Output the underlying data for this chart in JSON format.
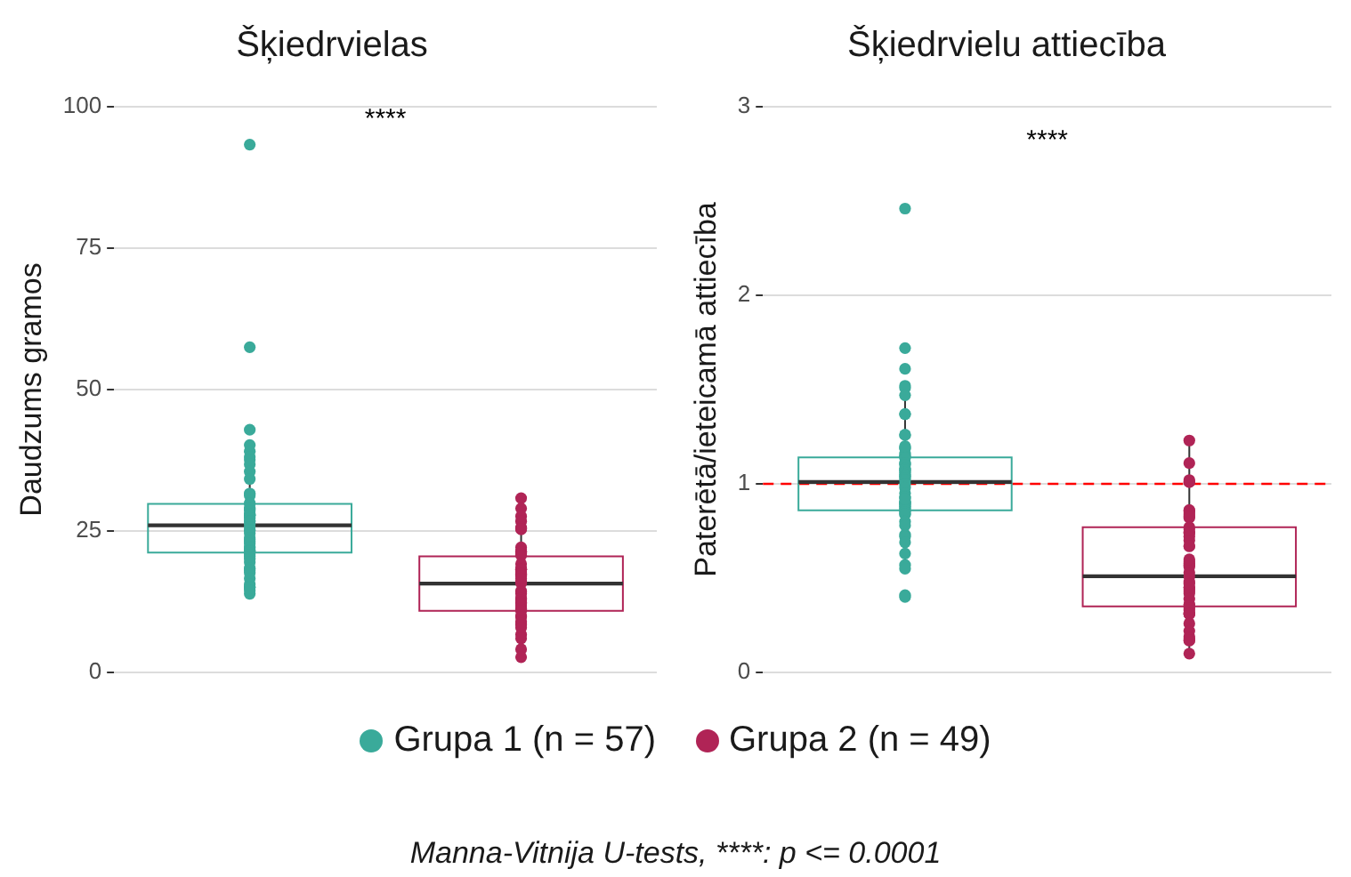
{
  "chart_data": [
    {
      "type": "box",
      "title": "Šķiedrvielas",
      "ylabel": "Daudzums gramos",
      "categories": [
        null,
        null
      ],
      "ylim": [
        0,
        100
      ],
      "yticks": [
        0,
        25,
        50,
        75,
        100
      ],
      "grid": "y",
      "tick_labels": "y",
      "legend": "bottom",
      "marker": "circle",
      "series": [
        {
          "name": "Grupa 1 (n = 57)",
          "color": "#3aaa9a",
          "boxes": [
            {
              "low": 14,
              "q1": 21.2,
              "median": 26,
              "q3": 29.8,
              "high": 40,
              "outliers": [
                93.3,
                57.5,
                42.9,
                40.2,
                39.1,
                38.1,
                37.6,
                36.8,
                35.5,
                34.2,
                31.6,
                31.6,
                31.3,
                29.9,
                29.9,
                29.1,
                28.9,
                28.6,
                28,
                27.8,
                27.8,
                27.8,
                27.6,
                27.3,
                26.8,
                26.7,
                26.2,
                25.7,
                25.2,
                25.1,
                24.6,
                23.8,
                23.5,
                23.1,
                22.8,
                22.2,
                22,
                21.6,
                21.5,
                21.4,
                21.4,
                21.1,
                20.8,
                20.5,
                20.1,
                19.5,
                18.4,
                18.4,
                18.1,
                17.6,
                16.6,
                15.6,
                15.1,
                15.1,
                15,
                13.9,
                14.5
              ]
            },
            null
          ]
        },
        {
          "name": "Grupa 2 (n = 49)",
          "color": "#b02456",
          "boxes": [
            null,
            {
              "low": 2.7,
              "q1": 10.9,
              "median": 15.7,
              "q3": 20.5,
              "high": 30.8,
              "outliers": [
                30.8,
                29,
                27.6,
                26.7,
                25.6,
                25.4,
                25.3,
                22.1,
                21.4,
                21.3,
                21.3,
                21.3,
                21,
                20.7,
                19.2,
                18.4,
                18.2,
                18.2,
                18.2,
                17.6,
                17.4,
                17.4,
                17.1,
                16,
                15.9,
                15.8,
                14.4,
                14.2,
                13.9,
                13.1,
                13.1,
                12.8,
                12.4,
                12.2,
                11.8,
                11.3,
                11.1,
                10.9,
                10,
                9.8,
                9,
                8.7,
                8.4,
                7.9,
                6.7,
                6,
                4.1,
                2.7,
                16.6
              ]
            }
          ]
        }
      ],
      "annotations": [
        "****",
        "Manna-Vitnija U-tests, ****: p <= 0.0001"
      ]
    },
    {
      "type": "box",
      "title": "Šķiedrvielu attiecība",
      "ylabel": "Paterētā/ieteicamā attiecība",
      "categories": [
        null,
        null
      ],
      "ylim": [
        0,
        3
      ],
      "yticks": [
        0,
        1,
        2,
        3
      ],
      "grid": "y",
      "tick_labels": "y",
      "marker": "circle",
      "series": [
        {
          "color": "#3aaa9a",
          "boxes": [
            {
              "low": 0.57,
              "q1": 0.86,
              "median": 1.01,
              "q3": 1.14,
              "high": 1.51,
              "outliers": [
                2.46,
                1.72,
                1.61,
                1.52,
                1.51,
                1.47,
                1.37,
                1.37,
                1.26,
                1.26,
                1.19,
                1.19,
                1.16,
                1.15,
                1.14,
                1.14,
                1.11,
                1.11,
                1.1,
                1.08,
                1.08,
                1.07,
                1.06,
                1.05,
                1.04,
                1.04,
                1.03,
                1.02,
                1,
                0.98,
                0.95,
                0.93,
                0.93,
                0.9,
                0.9,
                0.9,
                0.89,
                0.88,
                0.88,
                0.87,
                0.86,
                0.86,
                0.85,
                0.84,
                0.84,
                0.8,
                0.78,
                0.73,
                0.72,
                0.69,
                0.63,
                0.57,
                0.55,
                0.41,
                0.4,
                1.2,
                0.92
              ]
            },
            null
          ]
        },
        {
          "color": "#b02456",
          "boxes": [
            null,
            {
              "low": 0.1,
              "q1": 0.35,
              "median": 0.51,
              "q3": 0.77,
              "high": 1.23,
              "outliers": [
                1.23,
                1.11,
                1.02,
                1.01,
                1.01,
                0.86,
                0.86,
                0.85,
                0.84,
                0.83,
                0.82,
                0.77,
                0.76,
                0.74,
                0.74,
                0.72,
                0.7,
                0.67,
                0.67,
                0.59,
                0.58,
                0.57,
                0.56,
                0.53,
                0.51,
                0.48,
                0.45,
                0.45,
                0.44,
                0.43,
                0.42,
                0.39,
                0.36,
                0.36,
                0.35,
                0.34,
                0.33,
                0.31,
                0.31,
                0.31,
                0.26,
                0.22,
                0.19,
                0.18,
                0.17,
                0.17,
                0.1,
                0.6,
                0.47
              ]
            }
          ]
        }
      ],
      "ref_lines": [
        {
          "axis": "y",
          "value": 1,
          "color": "#ff0000",
          "line_style": "dashed"
        }
      ],
      "annotations": [
        "****"
      ]
    }
  ]
}
